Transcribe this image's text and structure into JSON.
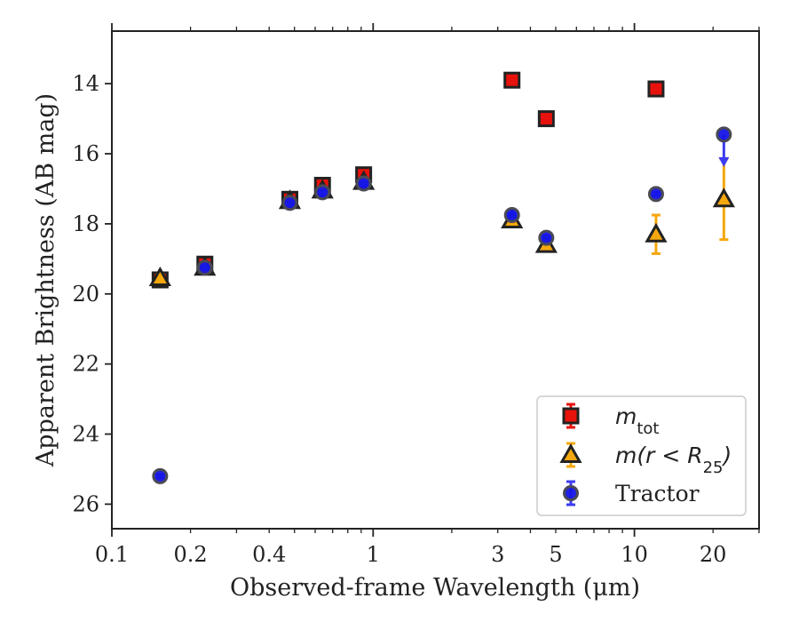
{
  "chart_data": {
    "type": "scatter",
    "xlabel": "Observed-frame Wavelength (μm)",
    "ylabel": "Apparent Brightness (AB mag)",
    "xscale": "log",
    "xlim": [
      0.1,
      30
    ],
    "ylim": [
      26.7,
      12.5
    ],
    "y_inverted": true,
    "grid": false,
    "legend_position": "lower-right",
    "x_ticks": [
      {
        "value": 0.1,
        "label": "0.1"
      },
      {
        "value": 0.2,
        "label": "0.2"
      },
      {
        "value": 0.4,
        "label": "0.4"
      },
      {
        "value": 1,
        "label": "1"
      },
      {
        "value": 3,
        "label": "3"
      },
      {
        "value": 5,
        "label": "5"
      },
      {
        "value": 10,
        "label": "10"
      },
      {
        "value": 20,
        "label": "20"
      }
    ],
    "y_ticks": [
      {
        "value": 14,
        "label": "14"
      },
      {
        "value": 16,
        "label": "16"
      },
      {
        "value": 18,
        "label": "18"
      },
      {
        "value": 20,
        "label": "20"
      },
      {
        "value": 22,
        "label": "22"
      },
      {
        "value": 24,
        "label": "24"
      },
      {
        "value": 26,
        "label": "26"
      }
    ],
    "series": [
      {
        "key": "mtot",
        "name_main": "m",
        "name_sub": "tot",
        "marker": "square",
        "color": "#e8120c",
        "errcolor": "#e8120c",
        "points": [
          {
            "x": 0.153,
            "y": 19.6,
            "err": 0.1
          },
          {
            "x": 0.227,
            "y": 19.15,
            "err": 0.1
          },
          {
            "x": 0.48,
            "y": 17.3,
            "err": 0.1
          },
          {
            "x": 0.64,
            "y": 16.9,
            "err": 0.1
          },
          {
            "x": 0.92,
            "y": 16.6,
            "err": 0.1
          },
          {
            "x": 3.4,
            "y": 13.9,
            "err": 0.05
          },
          {
            "x": 4.6,
            "y": 15.0,
            "err": 0.05
          },
          {
            "x": 12.1,
            "y": 14.15,
            "err": 0.05
          }
        ]
      },
      {
        "key": "mR25",
        "name_main": "m(r < R",
        "name_sub": "25",
        "name_tail": ")",
        "marker": "triangle",
        "color": "#f5a80e",
        "errcolor": "#f5a80e",
        "points": [
          {
            "x": 0.153,
            "y": 19.55,
            "err": 0.1
          },
          {
            "x": 0.227,
            "y": 19.25,
            "err": 0.1
          },
          {
            "x": 0.48,
            "y": 17.35,
            "err": 0.1
          },
          {
            "x": 0.64,
            "y": 17.05,
            "err": 0.1
          },
          {
            "x": 0.92,
            "y": 16.8,
            "err": 0.1
          },
          {
            "x": 3.4,
            "y": 17.9,
            "err": 0.1
          },
          {
            "x": 4.6,
            "y": 18.6,
            "err": 0.1
          },
          {
            "x": 12.1,
            "y": 18.3,
            "err": 0.55
          },
          {
            "x": 22.0,
            "y": 17.3,
            "err": 1.15
          }
        ]
      },
      {
        "key": "tractor",
        "name_main": "Tractor",
        "marker": "circle",
        "color": "#1414e6",
        "errcolor": "#3c3cf0",
        "points": [
          {
            "x": 0.153,
            "y": 25.2,
            "err": 0.05
          },
          {
            "x": 0.227,
            "y": 19.25,
            "err": 0.05
          },
          {
            "x": 0.48,
            "y": 17.4,
            "err": 0.05
          },
          {
            "x": 0.64,
            "y": 17.1,
            "err": 0.05
          },
          {
            "x": 0.92,
            "y": 16.85,
            "err": 0.05
          },
          {
            "x": 3.4,
            "y": 17.75,
            "err": 0.05
          },
          {
            "x": 4.6,
            "y": 18.4,
            "err": 0.05
          },
          {
            "x": 12.1,
            "y": 17.15,
            "err": 0.05
          },
          {
            "x": 22.0,
            "y": 15.45,
            "err": 0.05,
            "upper_limit_to": 16.3
          }
        ]
      }
    ]
  }
}
